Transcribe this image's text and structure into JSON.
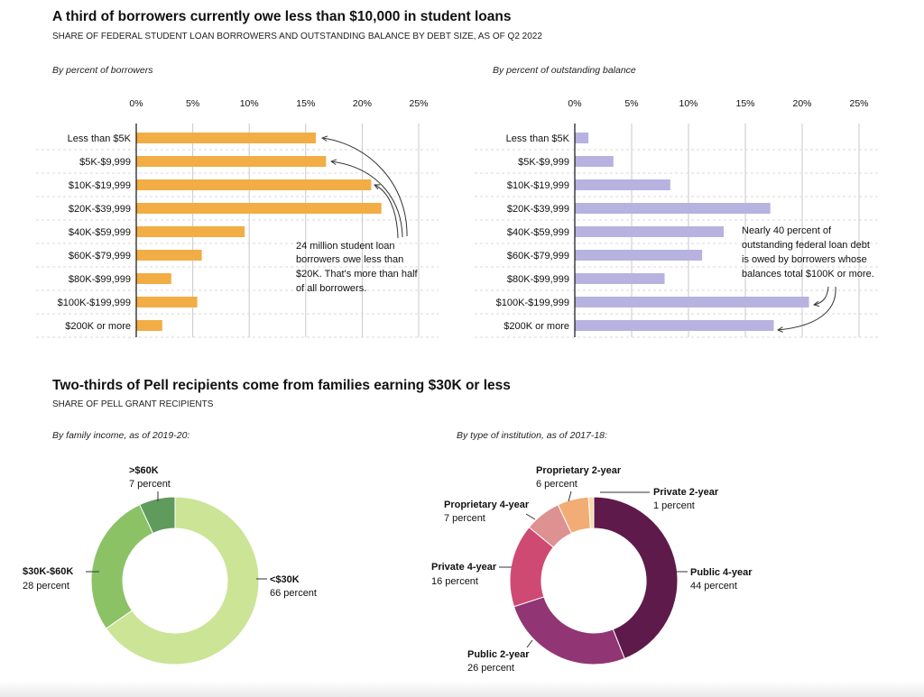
{
  "section1": {
    "title": "A third of borrowers currently owe less than $10,000 in student loans",
    "subtitle": "SHARE OF FEDERAL STUDENT LOAN BORROWERS AND OUTSTANDING BALANCE BY DEBT SIZE, AS OF Q2 2022"
  },
  "section2": {
    "title": "Two-thirds of Pell recipients come from families earning $30K or less",
    "subtitle": "SHARE OF PELL GRANT RECIPIENTS"
  },
  "colors": {
    "borrowers_bar": "#f2ad45",
    "balance_bar": "#b8b2e0",
    "income": [
      "#cbe496",
      "#8cc266",
      "#5f9b5c"
    ],
    "institution": [
      "#5e1a4a",
      "#923574",
      "#cf4a73",
      "#dd9191",
      "#f2ac76",
      "#f7d9a8"
    ]
  },
  "chart_data": [
    {
      "type": "bar",
      "orientation": "horizontal",
      "title": "By percent of borrowers",
      "categories": [
        "Less than $5K",
        "$5K-$9,999",
        "$10K-$19,999",
        "$20K-$39,999",
        "$40K-$59,999",
        "$60K-$79,999",
        "$80K-$99,999",
        "$100K-$199,999",
        "$200K or more"
      ],
      "values": [
        15.9,
        16.8,
        20.8,
        21.7,
        9.6,
        5.8,
        3.1,
        5.4,
        2.3
      ],
      "xlim": [
        0,
        25
      ],
      "xticks": [
        "0%",
        "5%",
        "10%",
        "15%",
        "20%",
        "25%"
      ],
      "tick_values": [
        0,
        5,
        10,
        15,
        20,
        25
      ],
      "annotation": {
        "lines": [
          "24 million student loan",
          "borrowers owe less than",
          "$20K. That's more than half",
          "of all borrowers."
        ]
      }
    },
    {
      "type": "bar",
      "orientation": "horizontal",
      "title": "By percent of outstanding balance",
      "categories": [
        "Less than $5K",
        "$5K-$9,999",
        "$10K-$19,999",
        "$20K-$39,999",
        "$40K-$59,999",
        "$60K-$79,999",
        "$80K-$99,999",
        "$100K-$199,999",
        "$200K or more"
      ],
      "values": [
        1.2,
        3.4,
        8.4,
        17.2,
        13.1,
        11.2,
        7.9,
        20.6,
        17.5
      ],
      "xlim": [
        0,
        25
      ],
      "xticks": [
        "0%",
        "5%",
        "10%",
        "15%",
        "20%",
        "25%"
      ],
      "tick_values": [
        0,
        5,
        10,
        15,
        20,
        25
      ],
      "annotation": {
        "lines": [
          "Nearly 40 percent of",
          "outstanding federal loan debt",
          "is owed by borrowers whose",
          "balances total $100K or more."
        ]
      }
    },
    {
      "type": "pie",
      "donut": true,
      "title": "By family income, as of 2019-20:",
      "slices": [
        {
          "label": "<$30K",
          "value": 66,
          "text": "66 percent"
        },
        {
          "label": "$30K-$60K",
          "value": 28,
          "text": "28 percent"
        },
        {
          "label": ">$60K",
          "value": 7,
          "text": "7 percent"
        }
      ]
    },
    {
      "type": "pie",
      "donut": true,
      "title": "By type of institution, as of 2017-18:",
      "slices": [
        {
          "label": "Public 4-year",
          "value": 44,
          "text": "44 percent"
        },
        {
          "label": "Public 2-year",
          "value": 26,
          "text": "26 percent"
        },
        {
          "label": "Private 4-year",
          "value": 16,
          "text": "16 percent"
        },
        {
          "label": "Proprietary 4-year",
          "value": 7,
          "text": "7 percent"
        },
        {
          "label": "Proprietary 2-year",
          "value": 6,
          "text": "6 percent"
        },
        {
          "label": "Private 2-year",
          "value": 1,
          "text": "1 percent"
        }
      ]
    }
  ]
}
